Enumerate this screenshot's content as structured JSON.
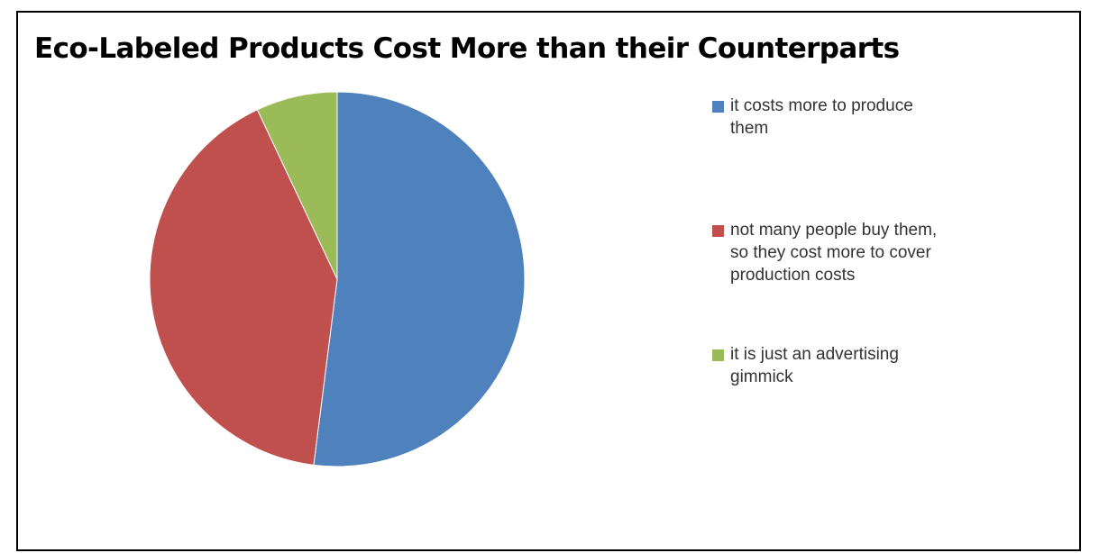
{
  "chart_data": {
    "type": "pie",
    "title": "Eco-Labeled Products Cost More than their Counterparts",
    "categories": [
      "it costs more to produce them",
      "not many people buy them, so they cost more to cover production costs",
      "it is just an advertising gimmick"
    ],
    "values": [
      52,
      41,
      7
    ],
    "colors": [
      "#4F81BD",
      "#C0504D",
      "#9BBB59"
    ],
    "legend_placement": "right"
  }
}
